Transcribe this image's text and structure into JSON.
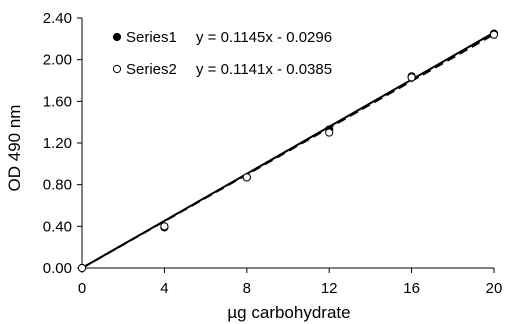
{
  "chart_data": {
    "type": "scatter",
    "title": "",
    "xlabel": "µg carbohydrate",
    "ylabel": "OD 490 nm",
    "xlim": [
      0,
      20
    ],
    "ylim": [
      0,
      2.4
    ],
    "x_ticks": [
      "0",
      "4",
      "8",
      "12",
      "16",
      "20"
    ],
    "y_ticks": [
      "0.00",
      "0.40",
      "0.80",
      "1.20",
      "1.60",
      "2.00",
      "2.40"
    ],
    "grid": false,
    "legend": "top-left",
    "series": [
      {
        "name": "Series1",
        "marker": "filled-circle",
        "color": "#000000",
        "x": [
          0,
          4,
          8,
          12,
          16,
          20
        ],
        "y": [
          0.0,
          0.39,
          0.87,
          1.33,
          1.84,
          2.25
        ],
        "trendline": {
          "label": "y = 0.1145x - 0.0296",
          "slope": 0.1145,
          "intercept": -0.0296,
          "style": "solid"
        }
      },
      {
        "name": "Series2",
        "marker": "open-circle",
        "color": "#000000",
        "x": [
          0,
          4,
          8,
          12,
          16,
          20
        ],
        "y": [
          0.0,
          0.4,
          0.87,
          1.3,
          1.83,
          2.24
        ],
        "trendline": {
          "label": "y = 0.1141x - 0.0385",
          "slope": 0.1141,
          "intercept": -0.0385,
          "style": "dashed"
        }
      }
    ]
  }
}
